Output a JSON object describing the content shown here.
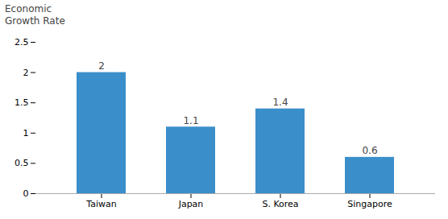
{
  "chart_data": {
    "type": "bar",
    "y_label": "Economic\nGrowth Rate",
    "categories": [
      "Taiwan",
      "Japan",
      "S. Korea",
      "Singapore"
    ],
    "values": [
      2.0,
      1.1,
      1.4,
      0.6
    ],
    "color": "#3a8fca",
    "ylim": [
      0,
      2.5
    ],
    "yticks": [
      0,
      0.5,
      1.0,
      1.5,
      2.0,
      2.5
    ],
    "grid": false,
    "data_labels": true
  }
}
